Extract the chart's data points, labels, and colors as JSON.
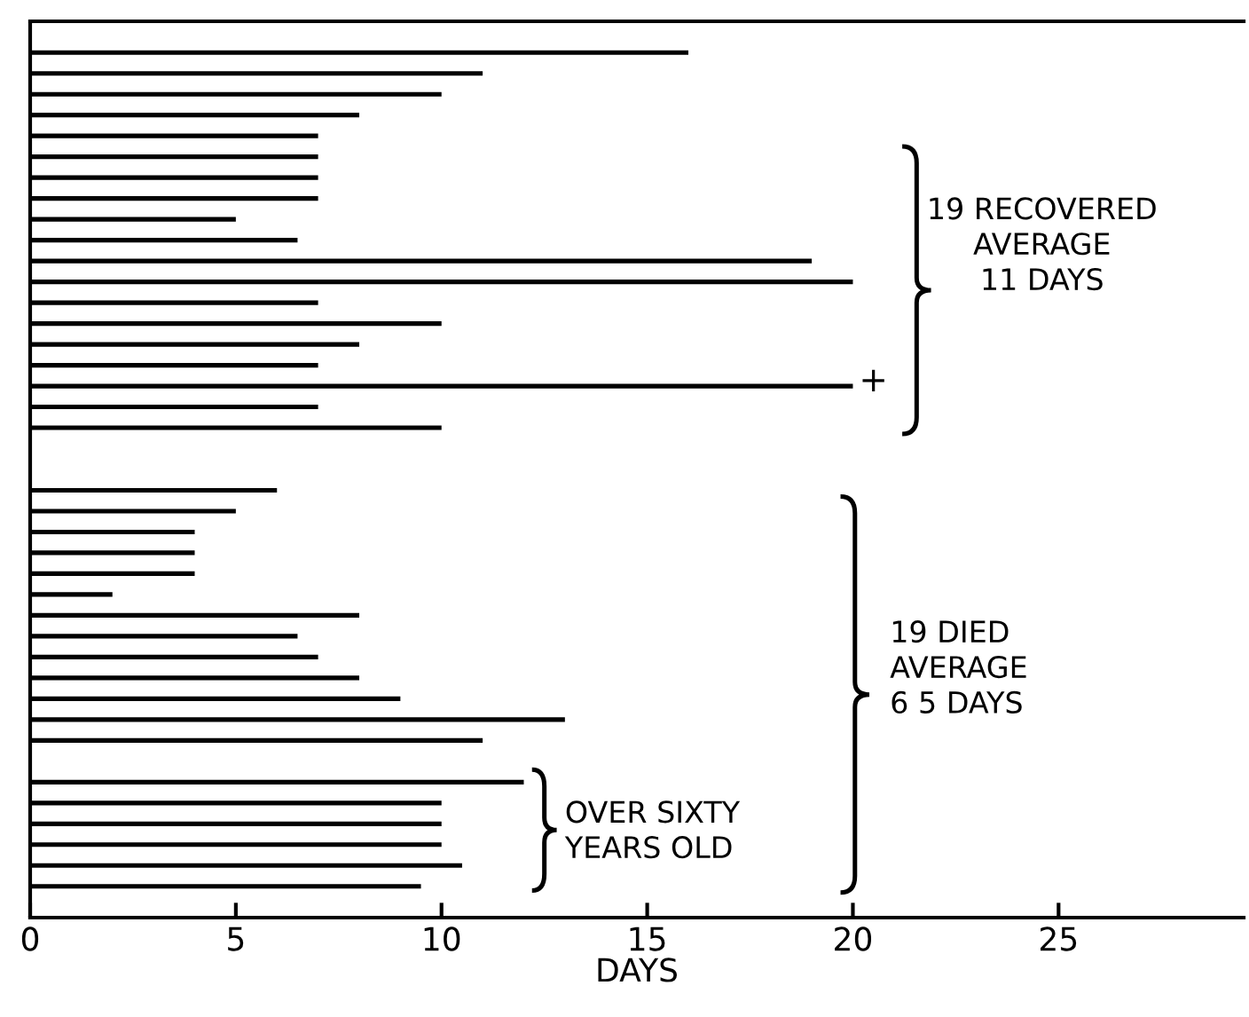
{
  "chart_data": {
    "type": "bar",
    "orientation": "horizontal",
    "xlabel": "DAYS",
    "categories": [
      null,
      null,
      null,
      null,
      null,
      null,
      null,
      null,
      null,
      null,
      null,
      null,
      null,
      null,
      null,
      null,
      null,
      null,
      null,
      null,
      null,
      null,
      null,
      null,
      null,
      null,
      null,
      null,
      null,
      null,
      null,
      null,
      null,
      null,
      null,
      null,
      null,
      null,
      null,
      null,
      null,
      null,
      null
    ],
    "values": [
      null,
      16,
      11,
      10,
      8,
      7,
      7,
      7,
      7,
      5,
      6.5,
      19,
      20,
      7,
      10,
      8,
      7,
      20,
      7,
      10,
      null,
      null,
      6,
      5,
      4,
      4,
      4,
      2,
      8,
      6.5,
      7,
      8,
      9,
      13,
      11,
      null,
      12,
      10,
      10,
      10,
      10.5,
      9.5,
      null
    ],
    "color": "#000000",
    "xlim": [
      0,
      29.5
    ],
    "xticks": [
      0,
      5,
      10,
      15,
      20,
      25
    ],
    "tick_labels": "x",
    "grid": false,
    "legend": false,
    "annotations": [
      "19 RECOVERED\nAVERAGE\n11 DAYS",
      "19 DIED\nAVERAGE\n6 5 DAYS",
      "OVER SIXTY\nYEARS OLD",
      "+"
    ]
  }
}
